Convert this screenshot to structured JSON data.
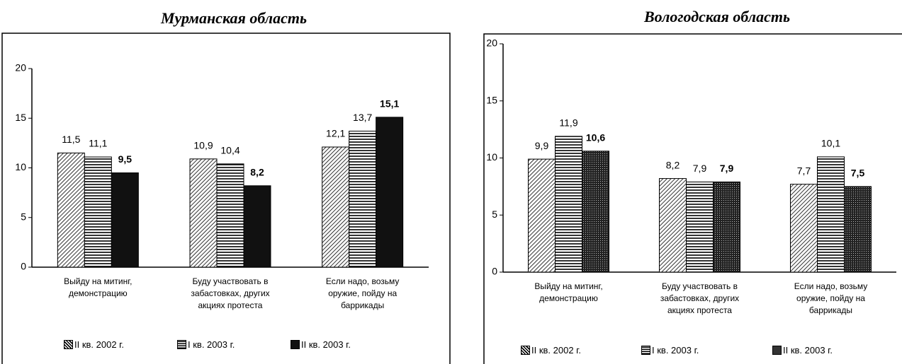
{
  "chart_data": [
    {
      "type": "bar",
      "title": "Мурманская область",
      "categories": [
        "Выйду на митинг, демонстрацию",
        "Буду участвовать в забастовках, других акциях протеста",
        "Если надо, возьму оружие, пойду на баррикады"
      ],
      "series": [
        {
          "name": "II кв. 2002 г.",
          "color": "#000000",
          "pattern": "diagonal",
          "values": [
            11.5,
            10.9,
            12.1
          ],
          "value_labels": [
            "11,5",
            "10,9",
            "12,1"
          ]
        },
        {
          "name": "I кв. 2003 г.",
          "color": "#000000",
          "pattern": "horizontal",
          "values": [
            11.1,
            10.4,
            13.7
          ],
          "value_labels": [
            "11,1",
            "10,4",
            "13,7"
          ]
        },
        {
          "name": "II кв. 2003 г.",
          "color": "#000000",
          "pattern": "solid",
          "values": [
            9.5,
            8.2,
            15.1
          ],
          "value_labels": [
            "9,5",
            "8,2",
            "15,1"
          ]
        }
      ],
      "ylim": [
        0,
        20
      ],
      "yticks": [
        0,
        5,
        10,
        15,
        20
      ],
      "grid": false
    },
    {
      "type": "bar",
      "title": "Вологодская область",
      "categories": [
        "Выйду на митинг, демонстрацию",
        "Буду участвовать в забастовках, других акциях протеста",
        "Если надо, возьму оружие, пойду на баррикады"
      ],
      "series": [
        {
          "name": "II кв. 2002 г.",
          "color": "#000000",
          "pattern": "diagonal",
          "values": [
            9.9,
            8.2,
            7.7
          ],
          "value_labels": [
            "9,9",
            "8,2",
            "7,7"
          ]
        },
        {
          "name": "I кв. 2003 г.",
          "color": "#000000",
          "pattern": "horizontal",
          "values": [
            11.9,
            7.9,
            10.1
          ],
          "value_labels": [
            "11,9",
            "7,9",
            "10,1"
          ]
        },
        {
          "name": "II кв. 2003 г.",
          "color": "#000000",
          "pattern": "dots",
          "values": [
            10.6,
            7.9,
            7.5
          ],
          "value_labels": [
            "10,6",
            "7,9",
            "7,5"
          ]
        }
      ],
      "ylim": [
        0,
        20
      ],
      "yticks": [
        0,
        5,
        10,
        15,
        20
      ],
      "grid": false
    }
  ]
}
